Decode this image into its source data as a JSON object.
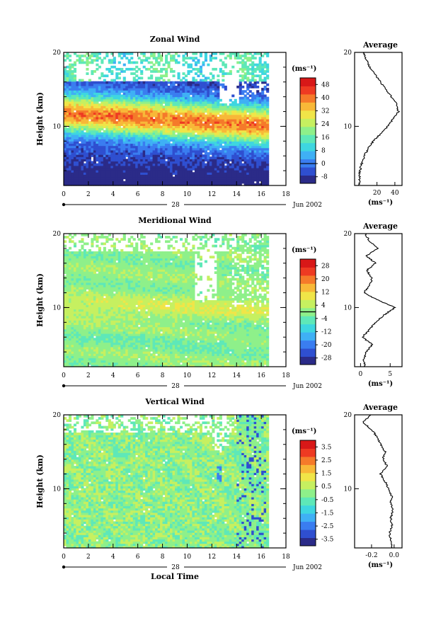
{
  "chart_data": [
    {
      "type": "heatmap",
      "title": "Zonal Wind",
      "ylabel": "Height (km)",
      "ylim": [
        2,
        20
      ],
      "xlim": [
        0,
        18
      ],
      "x_ticks": [
        "0",
        "2",
        "4",
        "6",
        "8",
        "10",
        "12",
        "14",
        "16",
        "18"
      ],
      "y_ticks": [
        "10",
        "20"
      ],
      "date_label": "28",
      "month_label": "Jun 2002",
      "colorbar": {
        "unit": "(ms⁻¹)",
        "levels": [
          "48",
          "40",
          "32",
          "24",
          "16",
          "8",
          "0",
          "-8"
        ],
        "min": -12,
        "max": 52,
        "zero_line": 0
      },
      "profile": {
        "title": "Average",
        "xlabel": "(ms⁻¹)",
        "x_ticks": [
          "20",
          "40"
        ],
        "x_tick_values": [
          20,
          40
        ],
        "xlim": [
          -5,
          48
        ],
        "y_ticks": [
          "10",
          "20"
        ],
        "points": [
          [
            0.5,
            2
          ],
          [
            0.5,
            3
          ],
          [
            1,
            4
          ],
          [
            3,
            5
          ],
          [
            6,
            6
          ],
          [
            10,
            7
          ],
          [
            16,
            8
          ],
          [
            24,
            9
          ],
          [
            32,
            10
          ],
          [
            38,
            11
          ],
          [
            44,
            12
          ],
          [
            42,
            13
          ],
          [
            36,
            14
          ],
          [
            30,
            15
          ],
          [
            24,
            16
          ],
          [
            18,
            17
          ],
          [
            12,
            18
          ],
          [
            8,
            19
          ],
          [
            5,
            20
          ]
        ]
      },
      "field": {
        "type": "zonal",
        "peak": 48,
        "peak_height": 11.5
      }
    },
    {
      "type": "heatmap",
      "title": "Meridional Wind",
      "ylabel": "Height (km)",
      "ylim": [
        2,
        20
      ],
      "xlim": [
        0,
        18
      ],
      "x_ticks": [
        "0",
        "2",
        "4",
        "6",
        "8",
        "10",
        "12",
        "14",
        "16",
        "18"
      ],
      "y_ticks": [
        "10",
        "20"
      ],
      "date_label": "28",
      "month_label": "Jun 2002",
      "colorbar": {
        "unit": "(ms⁻¹)",
        "levels": [
          "28",
          "20",
          "12",
          "4",
          "-4",
          "-12",
          "-20",
          "-28"
        ],
        "min": -32,
        "max": 32,
        "zero_line": 0
      },
      "profile": {
        "title": "Average",
        "xlabel": "(ms⁻¹)",
        "x_ticks": [
          "0",
          "5"
        ],
        "x_tick_values": [
          0,
          5
        ],
        "xlim": [
          -1,
          7
        ],
        "y_ticks": [
          "10",
          "20"
        ],
        "points": [
          [
            0.8,
            2
          ],
          [
            0.5,
            3
          ],
          [
            1,
            4
          ],
          [
            2,
            5
          ],
          [
            0.3,
            6
          ],
          [
            1.5,
            7
          ],
          [
            2.5,
            8
          ],
          [
            4,
            9
          ],
          [
            5.8,
            10
          ],
          [
            3,
            11
          ],
          [
            0.5,
            12
          ],
          [
            1.5,
            13
          ],
          [
            2,
            14
          ],
          [
            1,
            15
          ],
          [
            2.5,
            16
          ],
          [
            1,
            17
          ],
          [
            3,
            18
          ],
          [
            1.5,
            19
          ],
          [
            0.8,
            20
          ]
        ]
      },
      "field": {
        "type": "meridional",
        "peak": 8,
        "peak_height": 10
      }
    },
    {
      "type": "heatmap",
      "title": "Vertical Wind",
      "ylabel": "Height (km)",
      "xlabel": "Local Time",
      "ylim": [
        2,
        20
      ],
      "xlim": [
        0,
        18
      ],
      "x_ticks": [
        "0",
        "2",
        "4",
        "6",
        "8",
        "10",
        "12",
        "14",
        "16",
        "18"
      ],
      "y_ticks": [
        "10",
        "20"
      ],
      "date_label": "28",
      "month_label": "Jun 2002",
      "colorbar": {
        "unit": "(ms⁻¹)",
        "levels": [
          "3.5",
          "2.5",
          "1.5",
          "0.5",
          "-0.5",
          "-1.5",
          "-2.5",
          "-3.5"
        ],
        "min": -4,
        "max": 4,
        "zero_line": null
      },
      "profile": {
        "title": "Average",
        "xlabel": "(ms⁻¹)",
        "x_ticks": [
          "-0.2",
          "0.0"
        ],
        "x_tick_values": [
          -0.2,
          0.0
        ],
        "xlim": [
          -0.35,
          0.07
        ],
        "y_ticks": [
          "10",
          "20"
        ],
        "points": [
          [
            -0.02,
            2
          ],
          [
            -0.03,
            3
          ],
          [
            -0.04,
            4
          ],
          [
            -0.02,
            5
          ],
          [
            -0.03,
            6
          ],
          [
            -0.01,
            7
          ],
          [
            -0.03,
            8
          ],
          [
            -0.02,
            9
          ],
          [
            -0.05,
            10
          ],
          [
            -0.08,
            11
          ],
          [
            -0.12,
            12
          ],
          [
            -0.06,
            13
          ],
          [
            -0.1,
            14
          ],
          [
            -0.08,
            15
          ],
          [
            -0.12,
            16
          ],
          [
            -0.15,
            17
          ],
          [
            -0.2,
            18
          ],
          [
            -0.28,
            19
          ],
          [
            -0.2,
            20
          ]
        ]
      },
      "field": {
        "type": "vertical",
        "peak": 0.5,
        "peak_height": 12
      }
    }
  ]
}
